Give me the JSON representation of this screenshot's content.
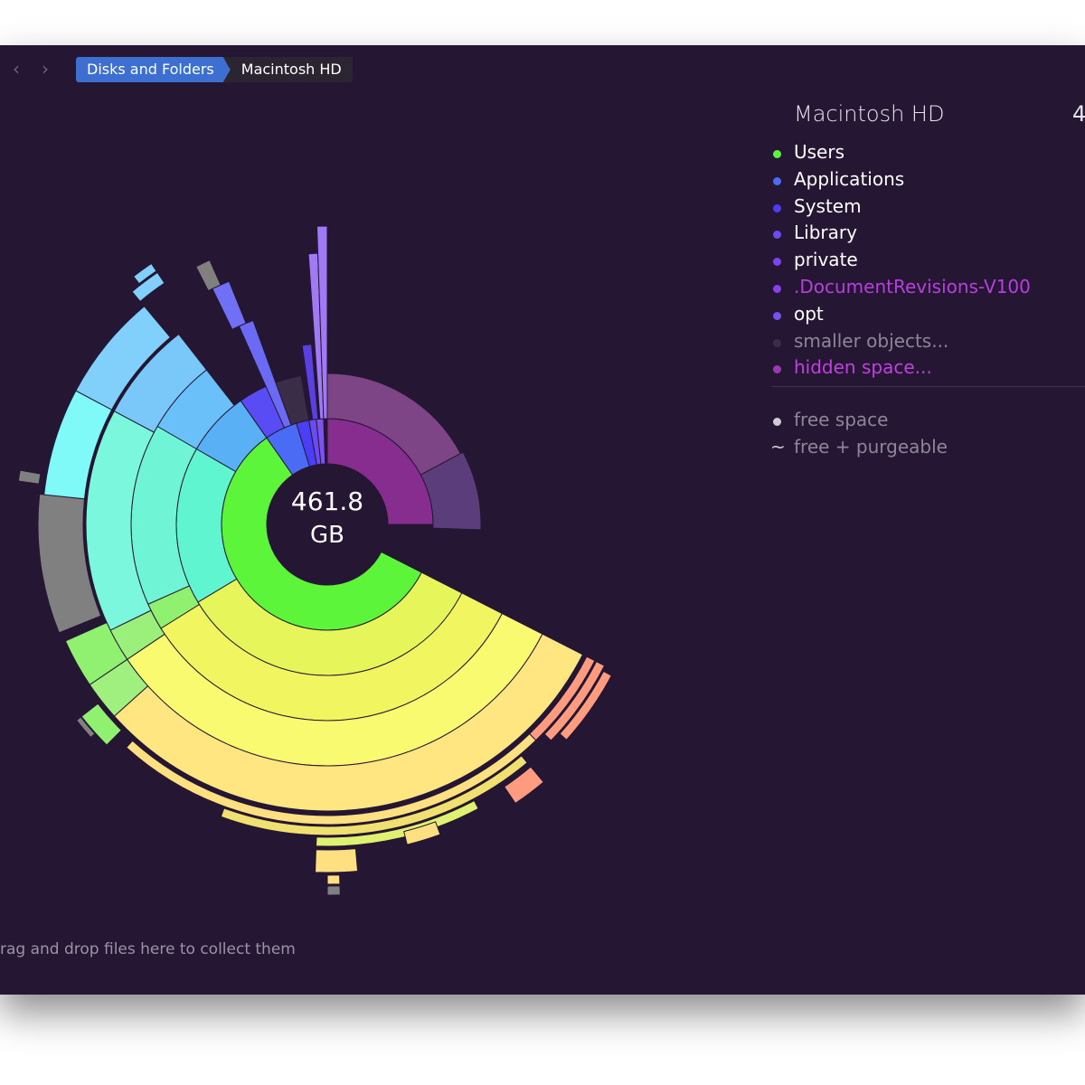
{
  "toolbar": {
    "breadcrumbs": [
      "Disks and Folders",
      "Macintosh HD"
    ]
  },
  "chart": {
    "center_value": "461.8",
    "center_unit": "GB"
  },
  "sidebar": {
    "title": "Macintosh HD",
    "size": "4",
    "items": [
      {
        "label": "Users",
        "color": "#5cf53a",
        "text_color": "#ffffff"
      },
      {
        "label": "Applications",
        "color": "#4a6cf5",
        "text_color": "#ffffff"
      },
      {
        "label": "System",
        "color": "#4b3ff5",
        "text_color": "#ffffff"
      },
      {
        "label": "Library",
        "color": "#6a4cf5",
        "text_color": "#ffffff"
      },
      {
        "label": "private",
        "color": "#7a45f0",
        "text_color": "#ffffff"
      },
      {
        "label": ".DocumentRevisions-V100",
        "color": "#8a3ef0",
        "text_color": "#b83ee0"
      },
      {
        "label": "opt",
        "color": "#7b50f0",
        "text_color": "#ffffff"
      },
      {
        "label": "smaller objects...",
        "color": "#3a2d48",
        "text_color": "#8d8699"
      },
      {
        "label": "hidden space...",
        "color": "#9a3ab0",
        "text_color": "#c040e0"
      }
    ],
    "extra": [
      {
        "label": "free space"
      },
      {
        "marker": "~",
        "label": "free + purgeable"
      }
    ]
  },
  "footer": "rag and drop files here to collect them"
}
